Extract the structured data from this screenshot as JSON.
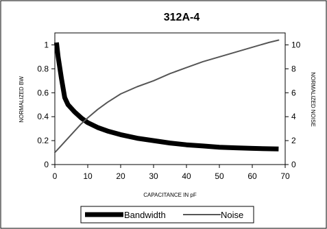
{
  "chart_data": {
    "type": "line",
    "title": "312A-4",
    "xlabel": "CAPACITANCE IN pF",
    "ylabel_left": "NORMALIZED BW",
    "ylabel_right": "NORMALIZED NOISE",
    "xlim": [
      0,
      70
    ],
    "ylim_left": [
      0,
      1.1
    ],
    "ylim_right": [
      0,
      11
    ],
    "x_ticks": [
      "0",
      "10",
      "20",
      "30",
      "40",
      "50",
      "60",
      "70"
    ],
    "y_left_ticks": [
      "0",
      "0.2",
      "0.4",
      "0.6",
      "0.8",
      "1"
    ],
    "y_right_ticks": [
      "0",
      "2",
      "4",
      "6",
      "8",
      "10"
    ],
    "grid": false,
    "legend_position": "bottom",
    "series": [
      {
        "name": "Bandwidth",
        "axis": "left",
        "color": "#000000",
        "x": [
          0.5,
          1,
          2,
          3,
          4,
          6,
          8,
          10,
          13,
          16,
          20,
          25,
          30,
          35,
          40,
          45,
          50,
          55,
          60,
          68
        ],
        "y": [
          1.02,
          0.9,
          0.72,
          0.56,
          0.5,
          0.44,
          0.39,
          0.35,
          0.31,
          0.28,
          0.25,
          0.22,
          0.2,
          0.18,
          0.165,
          0.155,
          0.145,
          0.14,
          0.135,
          0.13
        ]
      },
      {
        "name": "Noise",
        "axis": "right",
        "color": "#555555",
        "x": [
          0,
          2,
          4,
          6,
          8,
          10,
          13,
          16,
          20,
          25,
          30,
          35,
          40,
          45,
          50,
          55,
          60,
          65,
          68
        ],
        "y": [
          1.0,
          1.6,
          2.2,
          2.8,
          3.4,
          3.9,
          4.6,
          5.2,
          5.9,
          6.5,
          7.0,
          7.6,
          8.1,
          8.6,
          9.0,
          9.4,
          9.8,
          10.2,
          10.4
        ]
      }
    ]
  }
}
